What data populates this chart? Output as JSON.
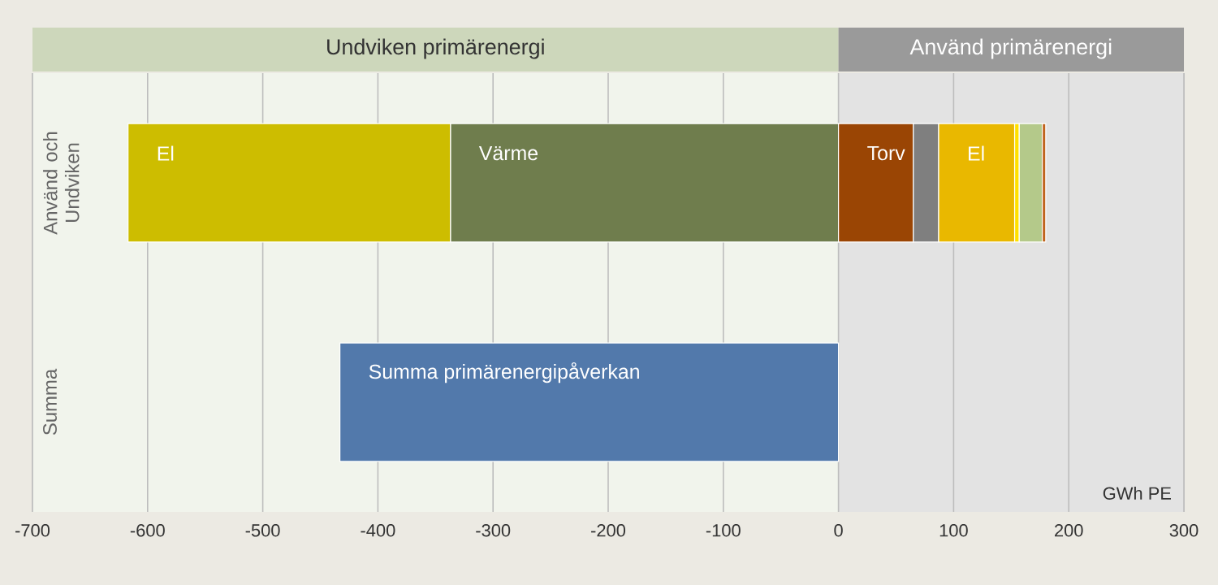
{
  "chart_data": {
    "type": "bar",
    "orientation": "horizontal",
    "stacked": true,
    "categories": [
      "Använd och Undviken",
      "Summa"
    ],
    "series": [
      {
        "name": "Värme",
        "color": "#6f7d4d",
        "values": [
          -337,
          null
        ]
      },
      {
        "name": "El",
        "color": "#cdbd00",
        "values": [
          -280,
          null
        ]
      },
      {
        "name": "Summa primärenergipåverkan",
        "color": "#5279ab",
        "values": [
          null,
          -433
        ]
      },
      {
        "name": "Torv",
        "color": "#9a4504",
        "values": [
          65,
          null
        ]
      },
      {
        "color": "#7f7f7f",
        "values": [
          22,
          null
        ]
      },
      {
        "name": "El",
        "color": "#e9b800",
        "values": [
          66,
          null
        ]
      },
      {
        "color": "#ffe000",
        "values": [
          4,
          null
        ]
      },
      {
        "color": "#b4c98a",
        "values": [
          20,
          null
        ]
      },
      {
        "color": "#c0641e",
        "values": [
          3,
          null
        ]
      }
    ],
    "xlim": [
      -700,
      300
    ],
    "xticks": [
      -700,
      -600,
      -500,
      -400,
      -300,
      -200,
      -100,
      0,
      100,
      200,
      300
    ],
    "xlabel": "GWh PE",
    "grid": "x",
    "bands": [
      {
        "axis": "x",
        "from": -700,
        "to": 0,
        "label": "Undviken primärenergi",
        "color": "#f1f4ec"
      },
      {
        "axis": "x",
        "from": 0,
        "to": 300,
        "label": "Använd primärenergi",
        "color": "#e3e3e3"
      }
    ]
  }
}
